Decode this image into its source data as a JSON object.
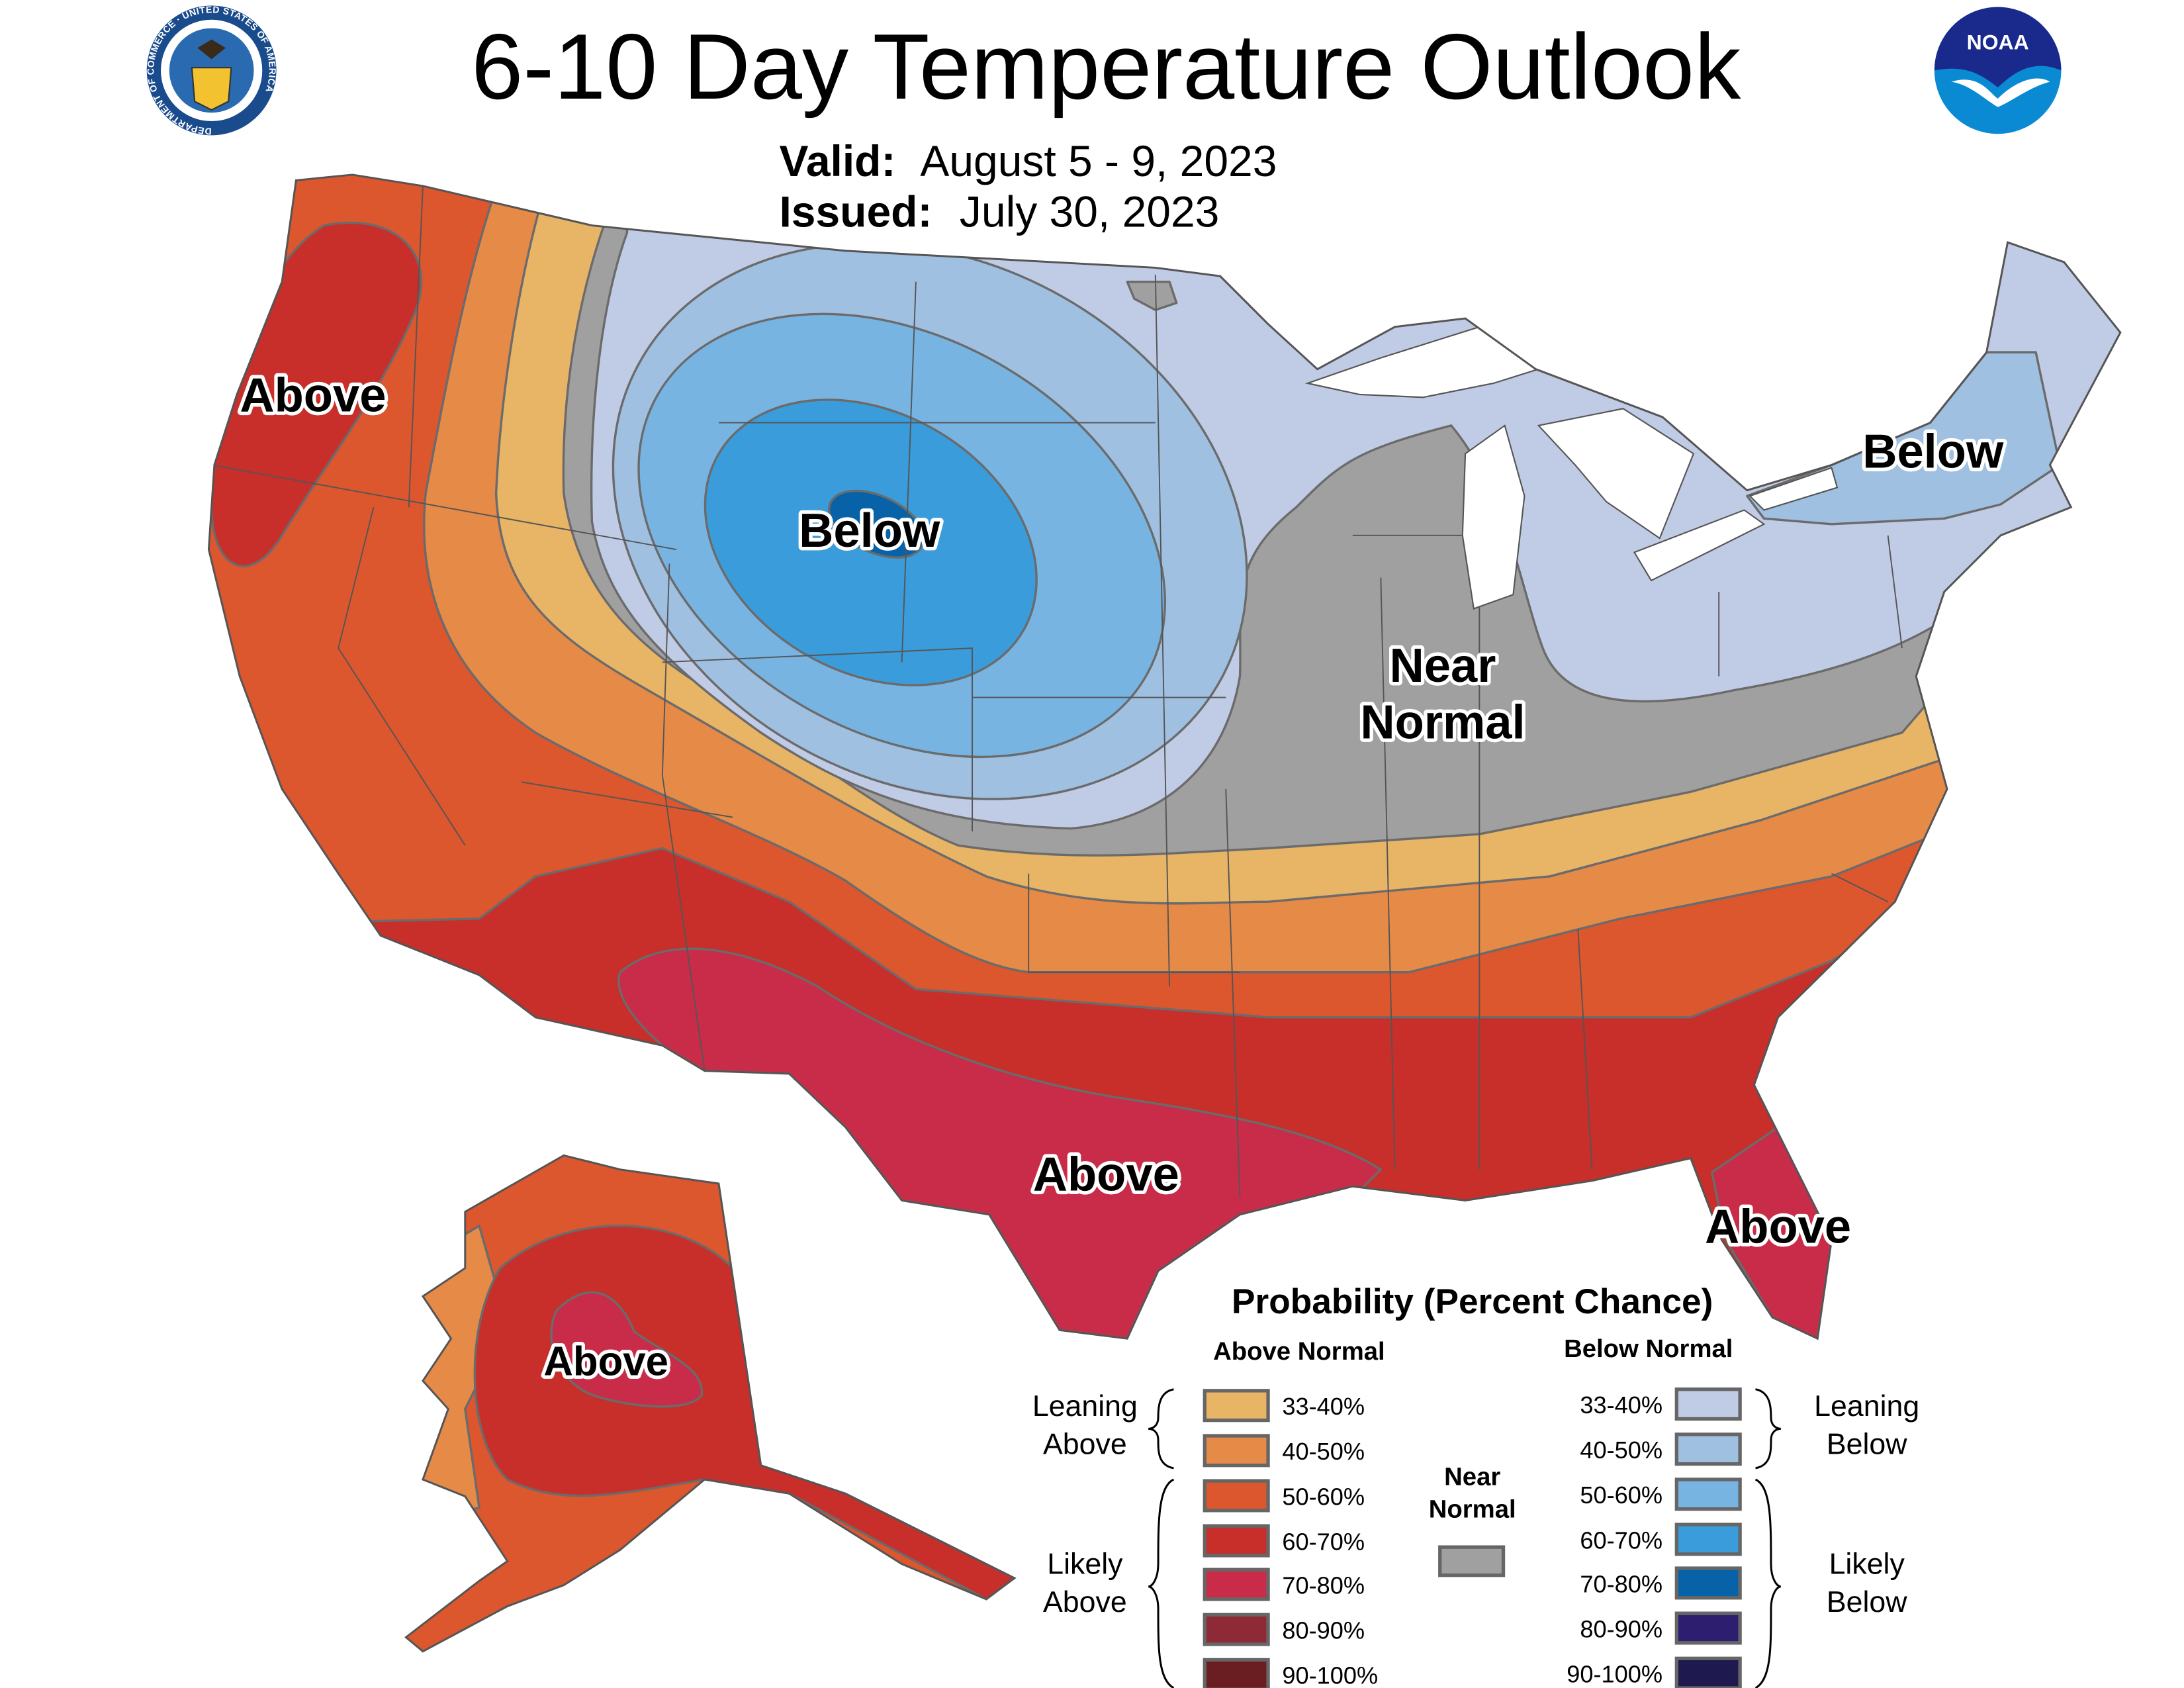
{
  "header": {
    "title": "6-10 Day Temperature Outlook",
    "valid_label": "Valid:",
    "valid_value": "August 5 - 9, 2023",
    "issued_label": "Issued:",
    "issued_value": "July 30, 2023",
    "left_logo": "US Department of Commerce seal",
    "left_logo_text": "DEPARTMENT OF COMMERCE · UNITED STATES OF AMERICA",
    "right_logo": "NOAA logo",
    "right_logo_text": "NOAA"
  },
  "map_labels": {
    "west": "Above",
    "south": "Above",
    "florida": "Above",
    "alaska": "Above",
    "plains": "Below",
    "northeast": "Below",
    "midwest_line1": "Near",
    "midwest_line2": "Normal"
  },
  "colors": {
    "above_33_40": "#E8B466",
    "above_40_50": "#E68A48",
    "above_50_60": "#DC562E",
    "above_60_70": "#C82E2A",
    "above_70_80": "#C92C48",
    "above_80_90": "#8E2A36",
    "above_90_100": "#6A1E22",
    "near_normal": "#A0A0A0",
    "below_33_40": "#C0CCE6",
    "below_40_50": "#A0C0E2",
    "below_50_60": "#78B4E2",
    "below_60_70": "#3A9CDA",
    "below_70_80": "#0862A8",
    "below_80_90": "#2E1E70",
    "below_90_100": "#1E1A50",
    "water": "#FFFFFF",
    "noaa_blue": "#0A8AD2",
    "noaa_navy": "#1A2A8C"
  },
  "legend": {
    "title": "Probability (Percent Chance)",
    "above_header": "Above Normal",
    "below_header": "Below Normal",
    "leaning_above": [
      "Leaning",
      "Above"
    ],
    "likely_above": [
      "Likely",
      "Above"
    ],
    "leaning_below": [
      "Leaning",
      "Below"
    ],
    "likely_below": [
      "Likely",
      "Below"
    ],
    "near_normal": [
      "Near",
      "Normal"
    ],
    "above": [
      {
        "label": "33-40%",
        "color": "#E8B466"
      },
      {
        "label": "40-50%",
        "color": "#E68A48"
      },
      {
        "label": "50-60%",
        "color": "#DC562E"
      },
      {
        "label": "60-70%",
        "color": "#C82E2A"
      },
      {
        "label": "70-80%",
        "color": "#C92C48"
      },
      {
        "label": "80-90%",
        "color": "#8E2A36"
      },
      {
        "label": "90-100%",
        "color": "#6A1E22"
      }
    ],
    "below": [
      {
        "label": "33-40%",
        "color": "#C0CCE6"
      },
      {
        "label": "40-50%",
        "color": "#A0C0E2"
      },
      {
        "label": "50-60%",
        "color": "#78B4E2"
      },
      {
        "label": "60-70%",
        "color": "#3A9CDA"
      },
      {
        "label": "70-80%",
        "color": "#0862A8"
      },
      {
        "label": "80-90%",
        "color": "#2E1E70"
      },
      {
        "label": "90-100%",
        "color": "#1E1A50"
      }
    ],
    "near_normal_color": "#A0A0A0"
  }
}
